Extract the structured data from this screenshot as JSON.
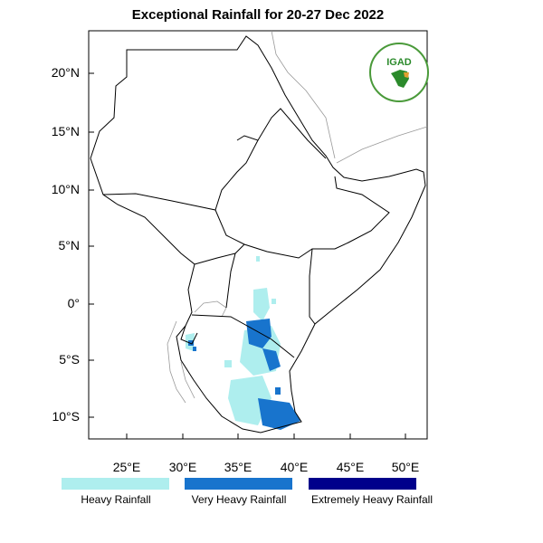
{
  "title": "Exceptional Rainfall for 20-27 Dec 2022",
  "logo": {
    "text": "IGAD"
  },
  "axes": {
    "lat_labels": [
      "20°N",
      "15°N",
      "10°N",
      "5°N",
      "0°",
      "5°S",
      "10°S"
    ],
    "lon_labels": [
      "25°E",
      "30°E",
      "35°E",
      "40°E",
      "45°E",
      "50°E"
    ]
  },
  "legend": [
    {
      "label": "Heavy Rainfall",
      "color": "#aeeeee"
    },
    {
      "label": "Very Heavy Rainfall",
      "color": "#1874cd"
    },
    {
      "label": "Extremely Heavy Rainfall",
      "color": "#00008b"
    }
  ]
}
